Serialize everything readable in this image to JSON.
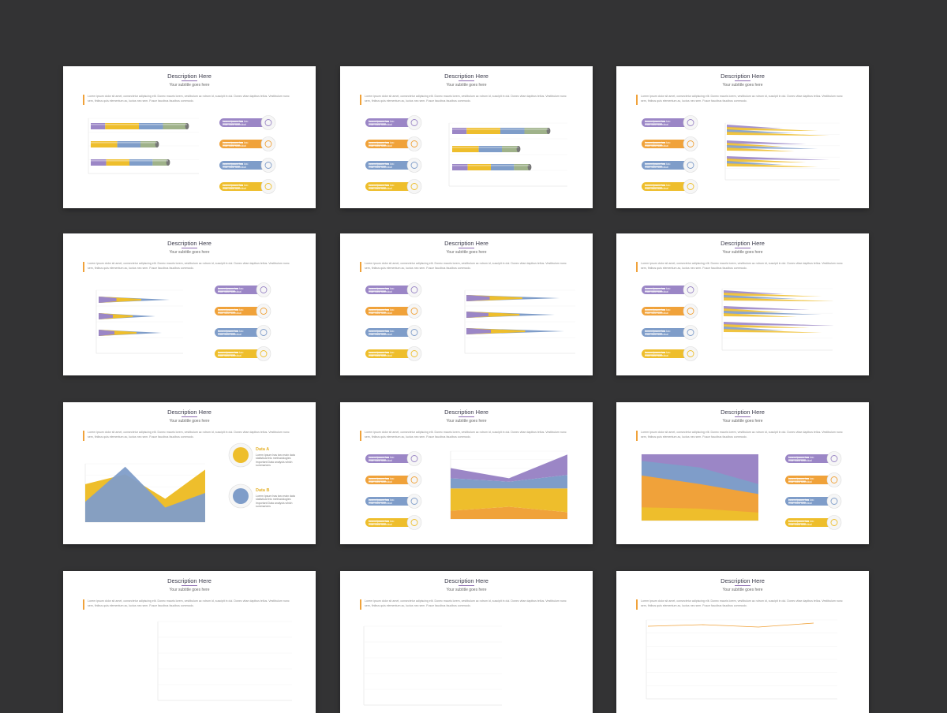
{
  "slide_template": {
    "title": "Description Here",
    "subtitle": "Your subtitle goes here",
    "body": "Lorem ipsum dolor sit amet, consectetur adipiscing elit. Donec mauris lorem, vestibulum ac rutrum id, suscipit in dui. Donec vitae dapibus tellus. Vestibulum nunc sem, finibus quis elementum ac, luctus nec sem. Fusce faucibus faucibus commodo."
  },
  "pill_label_line1": "Lorem Ipsum has two",
  "pill_label_line2": "main data statistical",
  "data_a": {
    "title": "Data A",
    "desc": "Lorem Ipsum has two main data statistical this methodologies important Data analysis which summarizes"
  },
  "data_b": {
    "title": "Data B",
    "desc": "Lorem Ipsum has two main data statistical this methodologies important Data analysis which summarizes"
  },
  "colors": {
    "background": "#333334",
    "purple": "#9b86c6",
    "orange": "#f0a23a",
    "blue": "#7f9dc9",
    "yellow": "#eebe2c",
    "green": "#9fb28a"
  },
  "icons": [
    "globe-icon",
    "bar-chart-icon",
    "megaphone-icon",
    "list-icon"
  ]
}
